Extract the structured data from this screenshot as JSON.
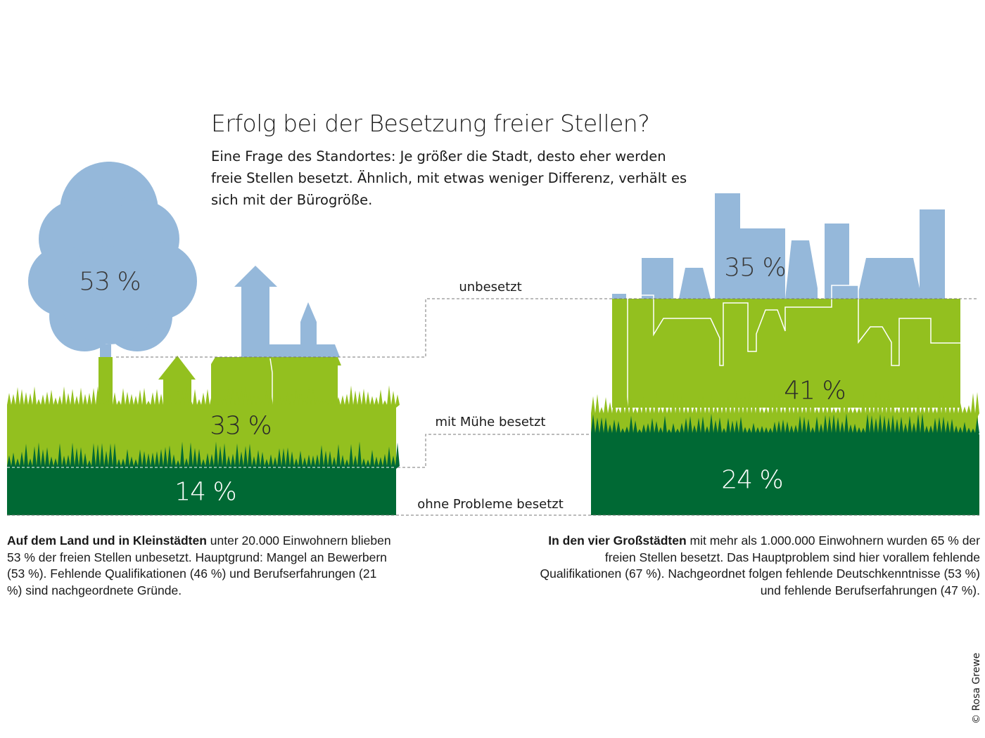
{
  "title": "Erfolg bei der Besetzung freier Stellen?",
  "subtitle": "Eine Frage des Standortes: Je größer die Stadt, desto eher werden freie Stellen besetzt. Ähnlich, mit etwas weniger Differenz, verhält es sich mit der Bürogröße.",
  "colors": {
    "unbesetzt": "#95b8da",
    "mit_muehe": "#93c01f",
    "ohne_probleme": "#006934"
  },
  "chart_data": {
    "type": "bar",
    "stacked": true,
    "categories": [
      "Auf dem Land und in Kleinstädten",
      "In den vier Großstädten"
    ],
    "series": [
      {
        "name": "ohne Probleme besetzt",
        "values": [
          14,
          24
        ],
        "labels": [
          "14 %",
          "24 %"
        ]
      },
      {
        "name": "mit Mühe besetzt",
        "values": [
          33,
          41
        ],
        "labels": [
          "33 %",
          "41 %"
        ]
      },
      {
        "name": "unbesetzt",
        "values": [
          53,
          35
        ],
        "labels": [
          "53 %",
          "35 %"
        ]
      }
    ]
  },
  "captions": {
    "left_bold": "Auf dem Land und in Kleinstädten",
    "left_rest": " unter 20.000 Einwohnern blieben 53 % der freien Stellen unbesetzt. Hauptgrund: Mangel an Bewerbern (53 %). Fehlende Qualifikationen (46 %) und Berufserfahrungen (21 %) sind nachgeordnete Gründe.",
    "right_bold": "In den vier Großstädten",
    "right_rest": " mit mehr als 1.000.000 Einwohnern wurden 65 % der freien Stellen besetzt. Das Hauptproblem sind hier vorallem fehlende Qualifikationen (67 %). Nachgeordnet folgen fehlende Deutschkenntnisse (53 %) und fehlende Berufserfahrungen (47 %)."
  },
  "copyright": "© Rosa Grewe"
}
